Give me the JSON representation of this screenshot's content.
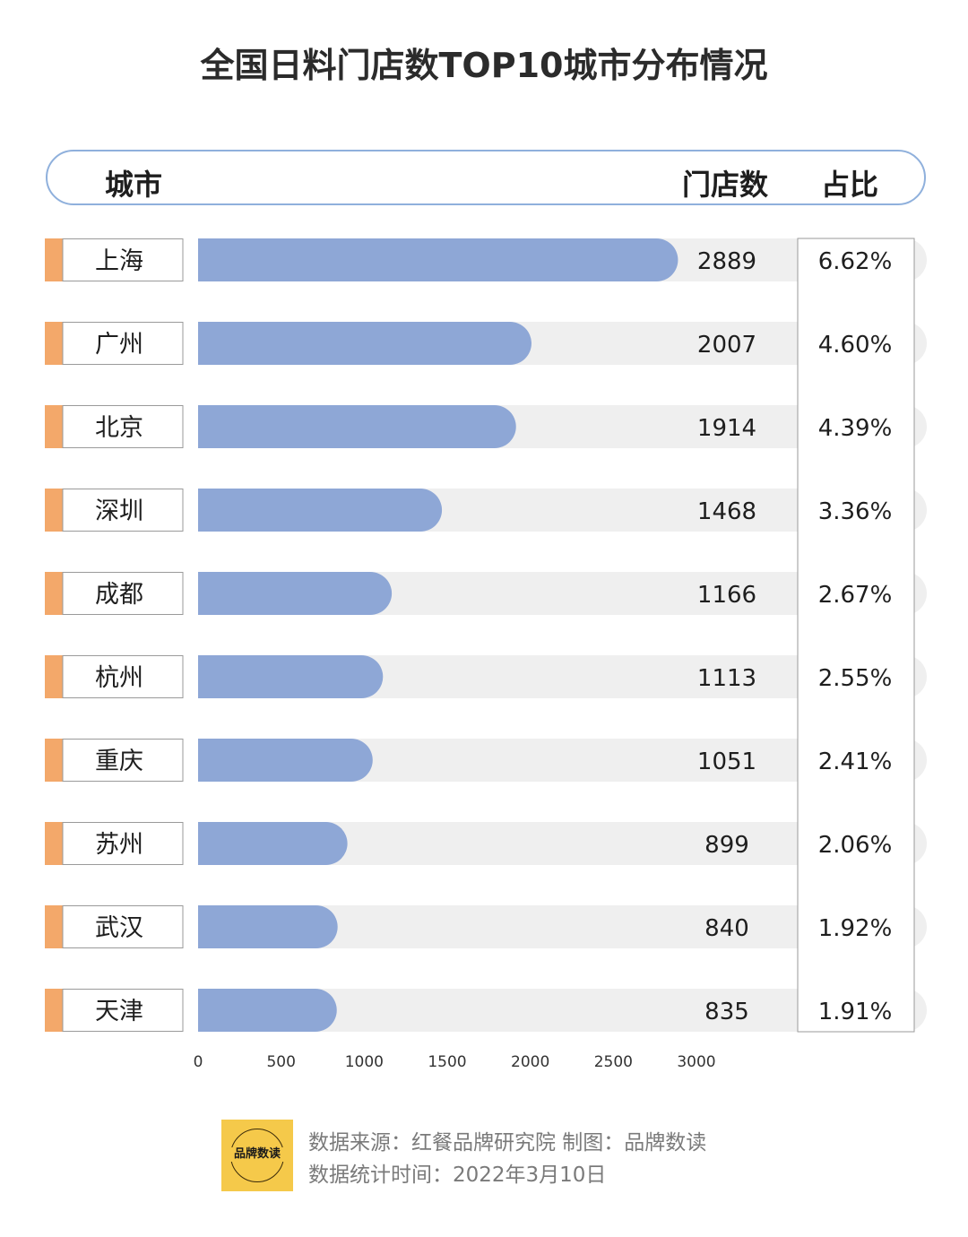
{
  "title": "全国日料门店数TOP10城市分布情况",
  "header": {
    "city": "城市",
    "count": "门店数",
    "pct": "占比"
  },
  "chart_data": {
    "type": "bar",
    "orientation": "horizontal",
    "categories": [
      "上海",
      "广州",
      "北京",
      "深圳",
      "成都",
      "杭州",
      "重庆",
      "苏州",
      "武汉",
      "天津"
    ],
    "values": [
      2889,
      2007,
      1914,
      1468,
      1166,
      1113,
      1051,
      899,
      840,
      835
    ],
    "value_labels": [
      "2889",
      "2007",
      "1914",
      "1468",
      "1166",
      "1113",
      "1051",
      "899",
      "840",
      "835"
    ],
    "shares": [
      "6.62%",
      "4.60%",
      "4.39%",
      "3.36%",
      "2.67%",
      "2.55%",
      "2.41%",
      "2.06%",
      "1.92%",
      "1.91%"
    ],
    "xlim": [
      0,
      3000
    ],
    "x_ticks": [
      0,
      500,
      1000,
      1500,
      2000,
      2500,
      3000
    ],
    "colors": {
      "bar": "#8ea7d6",
      "track": "#efefef",
      "accent": "#f3a86a",
      "border": "#9a9a9a"
    }
  },
  "footer": {
    "source": "数据来源：红餐品牌研究院  制图：品牌数读",
    "date": "数据统计时间：2022年3月10日",
    "logo_text": "品牌数读"
  }
}
